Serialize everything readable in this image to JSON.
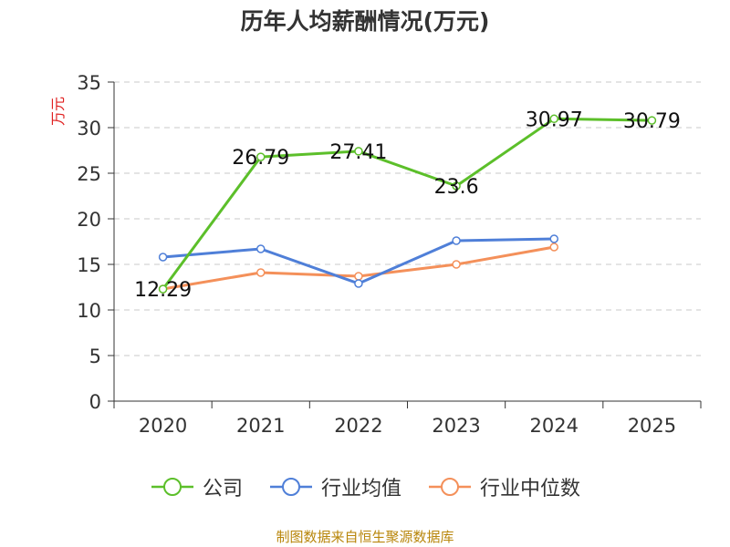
{
  "title": "历年人均薪酬情况(万元)",
  "footer": "制图数据来自恒生聚源数据库",
  "chart_data": {
    "type": "line",
    "title": "历年人均薪酬情况(万元)",
    "xlabel": "",
    "ylabel": "万元",
    "categories": [
      "2020",
      "2021",
      "2022",
      "2023",
      "2024",
      "2025"
    ],
    "ylim": [
      0,
      35
    ],
    "yticks": [
      0,
      5,
      10,
      15,
      20,
      25,
      30,
      35
    ],
    "grid": true,
    "legend_position": "bottom",
    "series": [
      {
        "name": "公司",
        "color": "#5cbf2a",
        "values": [
          12.29,
          26.79,
          27.41,
          23.6,
          30.97,
          30.79
        ],
        "labels": [
          "12.29",
          "26.79",
          "27.41",
          "23.6",
          "30.97",
          "30.79"
        ]
      },
      {
        "name": "行业均值",
        "color": "#4f7fd8",
        "values": [
          15.8,
          16.7,
          12.9,
          17.6,
          17.8,
          null
        ],
        "labels": []
      },
      {
        "name": "行业中位数",
        "color": "#f4905a",
        "values": [
          12.3,
          14.1,
          13.7,
          15.0,
          16.9,
          null
        ],
        "labels": []
      }
    ]
  }
}
